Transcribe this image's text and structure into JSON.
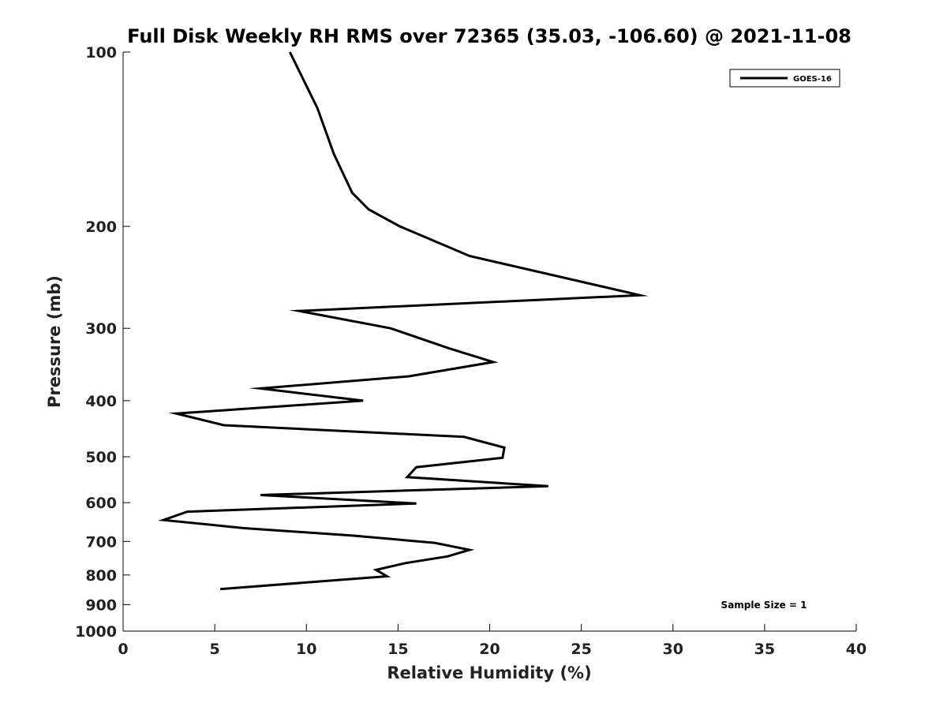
{
  "chart_data": {
    "type": "line",
    "title": "Full Disk Weekly RH RMS over 72365 (35.03, -106.60) @ 2021-11-08",
    "xlabel": "Relative Humidity (%)",
    "ylabel": "Pressure (mb)",
    "xlim": [
      0,
      40
    ],
    "ylim": [
      100,
      1000
    ],
    "y_scale": "log",
    "y_reversed": true,
    "xticks": [
      0,
      5,
      10,
      15,
      20,
      25,
      30,
      35,
      40
    ],
    "yticks": [
      100,
      200,
      300,
      400,
      500,
      600,
      700,
      800,
      900,
      1000
    ],
    "grid": false,
    "legend_position": "top-right",
    "annotation": "Sample Size = 1",
    "series": [
      {
        "name": "GOES-16",
        "color": "#000000",
        "points": [
          {
            "x": 9.1,
            "y": 100
          },
          {
            "x": 10.6,
            "y": 125
          },
          {
            "x": 11.5,
            "y": 150
          },
          {
            "x": 12.5,
            "y": 175
          },
          {
            "x": 13.4,
            "y": 187
          },
          {
            "x": 15.1,
            "y": 200
          },
          {
            "x": 18.9,
            "y": 225
          },
          {
            "x": 28.2,
            "y": 263
          },
          {
            "x": 9.6,
            "y": 280
          },
          {
            "x": 14.6,
            "y": 300
          },
          {
            "x": 17.8,
            "y": 325
          },
          {
            "x": 20.2,
            "y": 343
          },
          {
            "x": 15.6,
            "y": 363
          },
          {
            "x": 7.5,
            "y": 381
          },
          {
            "x": 13.1,
            "y": 400
          },
          {
            "x": 2.9,
            "y": 421
          },
          {
            "x": 5.5,
            "y": 441
          },
          {
            "x": 18.6,
            "y": 462
          },
          {
            "x": 20.8,
            "y": 482
          },
          {
            "x": 20.7,
            "y": 502
          },
          {
            "x": 16.0,
            "y": 521
          },
          {
            "x": 15.5,
            "y": 542
          },
          {
            "x": 23.2,
            "y": 562
          },
          {
            "x": 7.5,
            "y": 582
          },
          {
            "x": 16.0,
            "y": 602
          },
          {
            "x": 3.5,
            "y": 622
          },
          {
            "x": 2.2,
            "y": 643
          },
          {
            "x": 6.6,
            "y": 664
          },
          {
            "x": 12.5,
            "y": 684
          },
          {
            "x": 17.0,
            "y": 704
          },
          {
            "x": 18.9,
            "y": 724
          },
          {
            "x": 17.7,
            "y": 743
          },
          {
            "x": 15.4,
            "y": 763
          },
          {
            "x": 13.8,
            "y": 784
          },
          {
            "x": 14.4,
            "y": 804
          },
          {
            "x": 5.3,
            "y": 846
          }
        ]
      }
    ]
  }
}
